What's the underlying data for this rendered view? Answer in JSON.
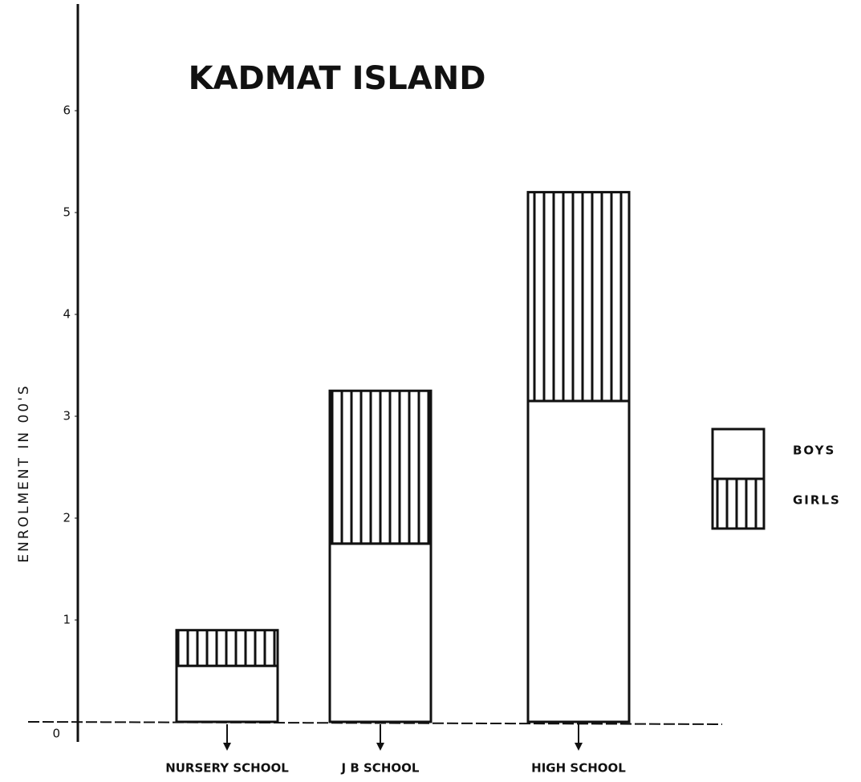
{
  "chart_data": {
    "type": "stacked-bar",
    "title": "KADMAT ISLAND",
    "y_label": "ENROLMENT IN 00'S",
    "categories": [
      "NURSERY SCHOOL",
      "J B SCHOOL",
      "HIGH SCHOOL"
    ],
    "series": [
      {
        "name": "BOYS",
        "color": "#111111",
        "pattern": "none",
        "values": [
          0.55,
          1.75,
          3.15
        ]
      },
      {
        "name": "GIRLS",
        "color": "#111111",
        "pattern": "vertical-lines",
        "values": [
          0.35,
          1.5,
          2.05
        ]
      }
    ],
    "ylim": [
      0,
      7
    ],
    "yticks": [
      0,
      1,
      2,
      3,
      4,
      5,
      6
    ],
    "grid": false,
    "legend": "right"
  }
}
